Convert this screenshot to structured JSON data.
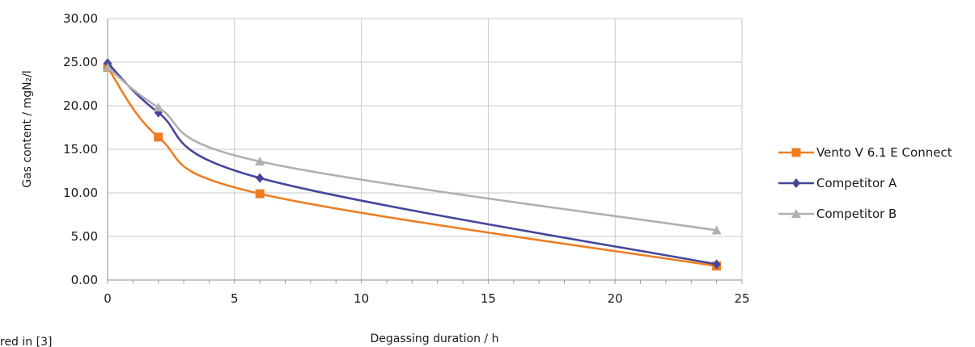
{
  "chart_data": {
    "type": "line",
    "xlabel": "Degassing duration / h",
    "ylabel": "Gas content / mgN₂/l",
    "xlim": [
      0,
      25
    ],
    "ylim": [
      0,
      30
    ],
    "x_ticks": [
      "0",
      "5",
      "10",
      "15",
      "20",
      "25"
    ],
    "y_ticks": [
      "0.00",
      "5.00",
      "10.00",
      "15.00",
      "20.00",
      "25.00",
      "30.00"
    ],
    "grid": true,
    "legend_position": "right",
    "series": [
      {
        "name": "Vento V 6.1 E Connect",
        "color": "#ee7d22",
        "marker": "square",
        "x": [
          0,
          2,
          6,
          24
        ],
        "y": [
          24.4,
          16.4,
          9.9,
          1.6
        ]
      },
      {
        "name": "Competitor A",
        "color": "#44469a",
        "marker": "diamond",
        "x": [
          0,
          2,
          6,
          24
        ],
        "y": [
          24.9,
          19.2,
          11.7,
          1.8
        ]
      },
      {
        "name": "Competitor B",
        "color": "#b0b0b0",
        "marker": "triangle",
        "x": [
          0,
          2,
          6,
          24
        ],
        "y": [
          24.4,
          19.8,
          13.6,
          5.7
        ]
      }
    ],
    "footnote": "red in [3]"
  }
}
